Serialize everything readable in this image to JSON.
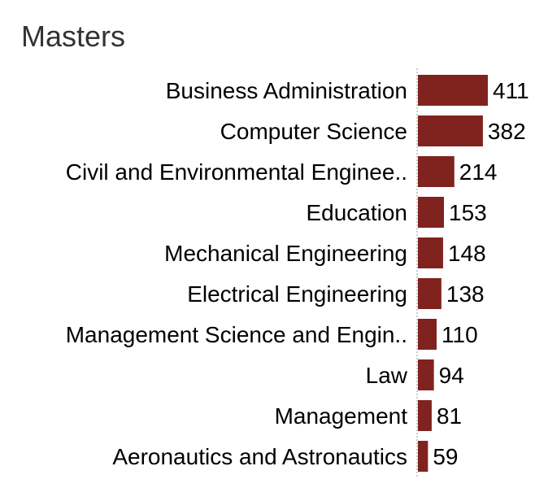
{
  "chart_data": {
    "type": "bar",
    "orientation": "horizontal",
    "title": "Masters",
    "categories": [
      "Business Administration",
      "Computer Science",
      "Civil and Environmental Enginee..",
      "Education",
      "Mechanical Engineering",
      "Electrical Engineering",
      "Management Science and Engin..",
      "Law",
      "Management",
      "Aeronautics and Astronautics"
    ],
    "values": [
      411,
      382,
      214,
      153,
      148,
      138,
      110,
      94,
      81,
      59
    ],
    "value_labels": [
      "411",
      "382",
      "214",
      "153",
      "148",
      "138",
      "110",
      "94",
      "81",
      "59"
    ],
    "bar_color": "#80231f",
    "axis_line_color": "#bbbbbb",
    "xlim": [
      0,
      411
    ]
  }
}
